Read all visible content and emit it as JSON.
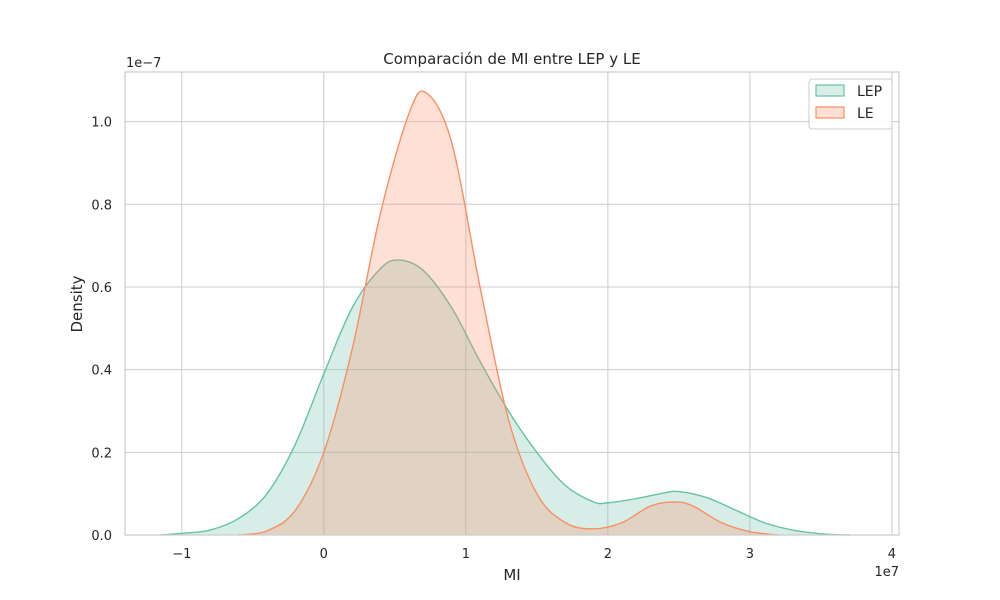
{
  "chart_data": {
    "type": "area",
    "title": "Comparación de MI entre LEP y LE",
    "xlabel": "MI",
    "ylabel": "Density",
    "x_offset_label": "1e7",
    "y_offset_label": "1e−7",
    "xlim": [
      -1.4,
      4.05
    ],
    "ylim": [
      0,
      1.12
    ],
    "x_ticks": [
      -1,
      0,
      1,
      2,
      3,
      4
    ],
    "x_tick_labels": [
      "−1",
      "0",
      "1",
      "2",
      "3",
      "4"
    ],
    "y_ticks": [
      0,
      0.2,
      0.4,
      0.6,
      0.8,
      1.0
    ],
    "y_tick_labels": [
      "0.0",
      "0.2",
      "0.4",
      "0.6",
      "0.8",
      "1.0"
    ],
    "grid": true,
    "legend_position": "top-right",
    "series": [
      {
        "name": "LEP",
        "color": "#66c2a5",
        "x": [
          -1.15,
          -1.0,
          -0.8,
          -0.6,
          -0.4,
          -0.2,
          0.0,
          0.2,
          0.4,
          0.53,
          0.7,
          0.9,
          1.1,
          1.3,
          1.5,
          1.7,
          1.9,
          2.0,
          2.2,
          2.4,
          2.5,
          2.7,
          2.9,
          3.1,
          3.3,
          3.5,
          3.7
        ],
        "y": [
          0.0,
          0.004,
          0.012,
          0.04,
          0.1,
          0.22,
          0.39,
          0.55,
          0.645,
          0.665,
          0.64,
          0.55,
          0.42,
          0.3,
          0.2,
          0.12,
          0.08,
          0.078,
          0.088,
          0.102,
          0.105,
          0.09,
          0.06,
          0.03,
          0.012,
          0.003,
          0.0
        ]
      },
      {
        "name": "LE",
        "color": "#fc8d62",
        "x": [
          -0.6,
          -0.4,
          -0.2,
          0.0,
          0.2,
          0.4,
          0.6,
          0.72,
          0.9,
          1.1,
          1.3,
          1.5,
          1.7,
          1.9,
          2.1,
          2.3,
          2.47,
          2.6,
          2.8,
          3.0,
          3.2
        ],
        "y": [
          0.0,
          0.01,
          0.06,
          0.2,
          0.45,
          0.78,
          1.02,
          1.07,
          0.95,
          0.6,
          0.28,
          0.1,
          0.03,
          0.015,
          0.03,
          0.07,
          0.08,
          0.07,
          0.03,
          0.008,
          0.0
        ]
      }
    ]
  }
}
